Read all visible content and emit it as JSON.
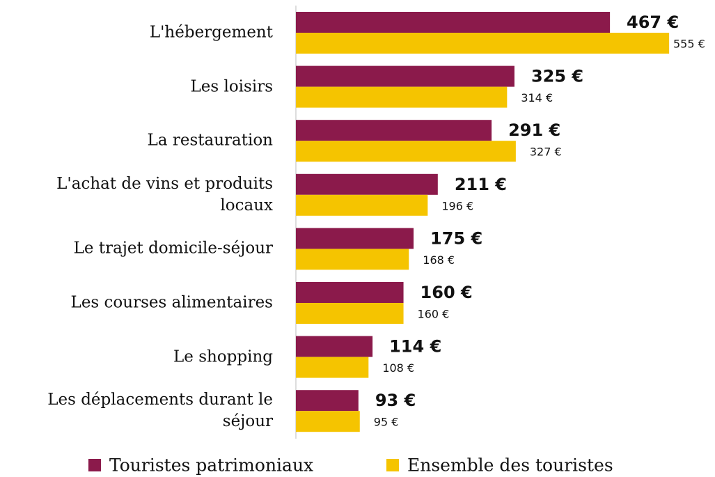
{
  "chart_data": {
    "type": "bar",
    "orientation": "horizontal",
    "categories": [
      "L'hébergement",
      "Les loisirs",
      "La restauration",
      "L'achat de vins et produits locaux",
      "Le trajet domicile-séjour",
      "Les courses alimentaires",
      "Le shopping",
      "Les déplacements durant le séjour"
    ],
    "series": [
      {
        "name": "Touristes patrimoniaux",
        "color": "#8b1a4b",
        "values": [
          467,
          325,
          291,
          211,
          175,
          160,
          114,
          93
        ],
        "value_labels": [
          "467 €",
          "325 €",
          "291 €",
          "211 €",
          "175 €",
          "160 €",
          "114 €",
          "93 €"
        ]
      },
      {
        "name": "Ensemble des touristes",
        "color": "#f5c400",
        "values": [
          555,
          314,
          327,
          196,
          168,
          160,
          108,
          95
        ],
        "value_labels": [
          "555 €",
          "314 €",
          "327 €",
          "196 €",
          "168 €",
          "160 €",
          "108 €",
          "95 €"
        ]
      }
    ],
    "legend": "bottom"
  }
}
